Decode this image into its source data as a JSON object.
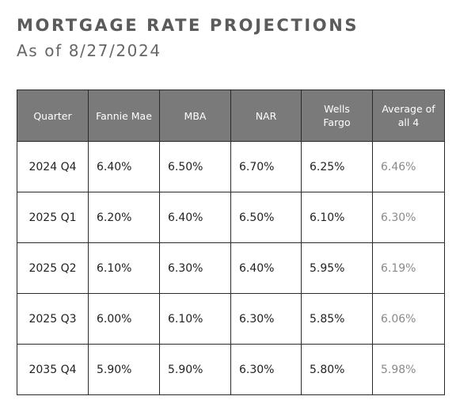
{
  "header": {
    "title": "MORTGAGE RATE PROJECTIONS",
    "subtitle": "As of 8/27/2024"
  },
  "table": {
    "columns": [
      "Quarter",
      "Fannie Mae",
      "MBA",
      "NAR",
      "Wells Fargo",
      "Average of all 4"
    ],
    "rows": [
      {
        "quarter": "2024 Q4",
        "fannie_mae": "6.40%",
        "mba": "6.50%",
        "nar": "6.70%",
        "wells_fargo": "6.25%",
        "average": "6.46%"
      },
      {
        "quarter": "2025 Q1",
        "fannie_mae": "6.20%",
        "mba": "6.40%",
        "nar": "6.50%",
        "wells_fargo": "6.10%",
        "average": "6.30%"
      },
      {
        "quarter": "2025 Q2",
        "fannie_mae": "6.10%",
        "mba": "6.30%",
        "nar": "6.40%",
        "wells_fargo": "5.95%",
        "average": "6.19%"
      },
      {
        "quarter": "2025 Q3",
        "fannie_mae": "6.00%",
        "mba": "6.10%",
        "nar": "6.30%",
        "wells_fargo": "5.85%",
        "average": "6.06%"
      },
      {
        "quarter": "2035 Q4",
        "fannie_mae": "5.90%",
        "mba": "5.90%",
        "nar": "6.30%",
        "wells_fargo": "5.80%",
        "average": "5.98%"
      }
    ]
  },
  "colors": {
    "header_background": "#7a7a7a",
    "header_text": "#ffffff",
    "title_text": "#5b5b5b",
    "average_text": "#8a8a8a",
    "border": "#2b2b2b"
  }
}
